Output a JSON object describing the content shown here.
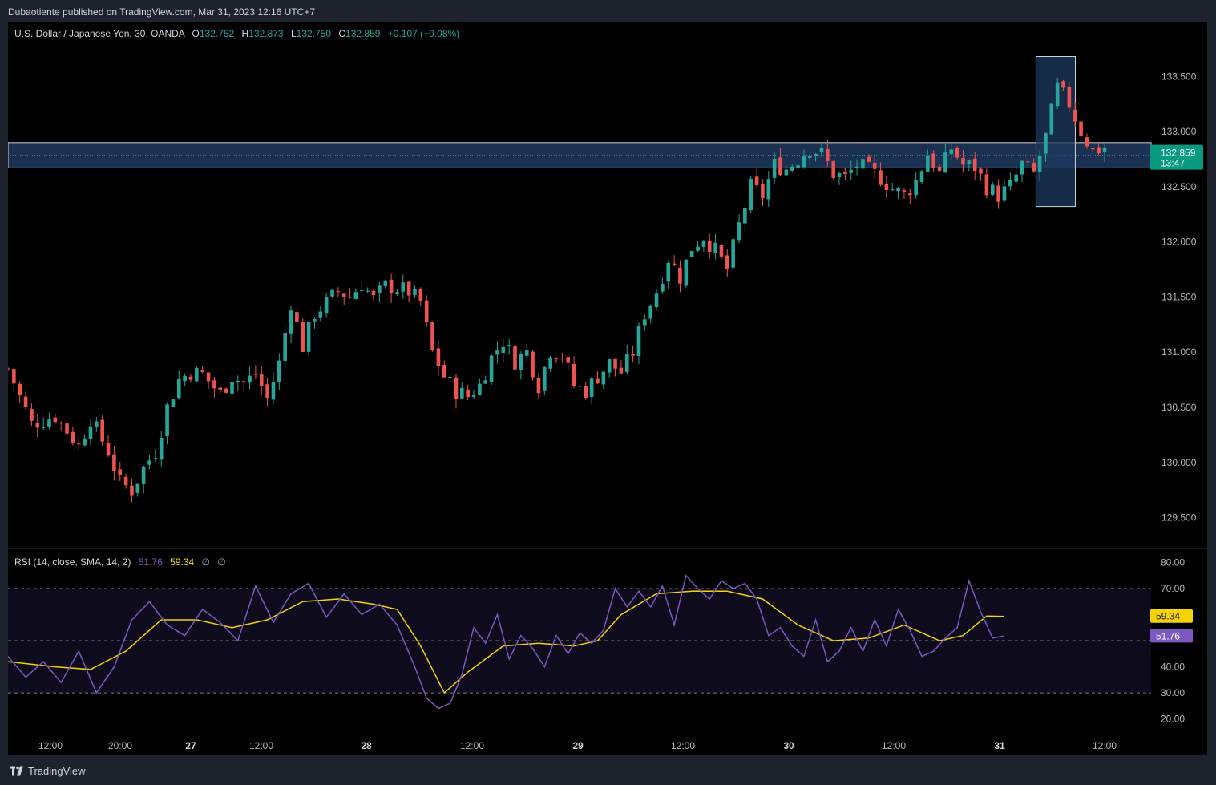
{
  "header": {
    "publisher_text": "Dubaotiente published on TradingView.com, Mar 31, 2023 12:16 UTC+7"
  },
  "symbol": {
    "name": "U.S. Dollar / Japanese Yen, 30, OANDA",
    "open_label": "O",
    "open": "132.752",
    "high_label": "H",
    "high": "132.873",
    "low_label": "L",
    "low": "132.750",
    "close_label": "C",
    "close": "132.859",
    "change": "+0.107 (+0.08%)"
  },
  "price_badge": {
    "price": "132.859",
    "countdown": "13:47"
  },
  "rsi_legend": {
    "name": "RSI (14, close, SMA, 14, 2)",
    "rsi_value": "51.76",
    "sma_value": "59.34",
    "na1": "∅",
    "na2": "∅"
  },
  "footer": {
    "brand": "TradingView"
  },
  "colors": {
    "up": "#26a69a",
    "down": "#ef5350",
    "rsi": "#7e57c2",
    "rsi_ma": "#f5d300",
    "zone_fill": "#1e3a5f",
    "background": "#000000"
  },
  "chart_data": [
    {
      "type": "candlestick",
      "title": "U.S. Dollar / Japanese Yen, 30, OANDA",
      "y_ticks": [
        "133.500",
        "133.000",
        "132.500",
        "132.000",
        "131.500",
        "131.000",
        "130.500",
        "130.000",
        "129.500"
      ],
      "ylim": [
        129.25,
        133.72
      ],
      "x_ticks": [
        "12:00",
        "20:00",
        "27",
        "12:00",
        "28",
        "12:00",
        "29",
        "12:00",
        "30",
        "12:00",
        "31",
        "12:00"
      ],
      "annotations": {
        "resistance_zone": [
          132.67,
          132.9
        ],
        "highlight_box_price_range": [
          132.32,
          133.68
        ]
      },
      "close_path": [
        [
          0,
          130.85
        ],
        [
          4,
          130.35
        ],
        [
          8,
          130.42
        ],
        [
          12,
          130.15
        ],
        [
          14,
          130.4
        ],
        [
          17,
          130.1
        ],
        [
          19,
          129.82
        ],
        [
          21,
          129.75
        ],
        [
          23,
          129.95
        ],
        [
          25,
          130.1
        ],
        [
          27,
          130.5
        ],
        [
          29,
          130.75
        ],
        [
          31,
          130.82
        ],
        [
          33,
          130.8
        ],
        [
          36,
          130.62
        ],
        [
          38,
          130.78
        ],
        [
          40,
          130.72
        ],
        [
          42,
          130.8
        ],
        [
          44,
          130.58
        ],
        [
          46,
          130.9
        ],
        [
          48,
          131.45
        ],
        [
          50,
          131.05
        ],
        [
          52,
          131.35
        ],
        [
          54,
          131.45
        ],
        [
          56,
          131.55
        ],
        [
          58,
          131.5
        ],
        [
          60,
          131.62
        ],
        [
          62,
          131.48
        ],
        [
          64,
          131.6
        ],
        [
          66,
          131.58
        ],
        [
          68,
          131.55
        ],
        [
          70,
          131.45
        ],
        [
          72,
          131.0
        ],
        [
          74,
          130.78
        ],
        [
          76,
          130.65
        ],
        [
          78,
          130.6
        ],
        [
          80,
          130.7
        ],
        [
          82,
          130.95
        ],
        [
          84,
          131.1
        ],
        [
          86,
          130.92
        ],
        [
          88,
          131.0
        ],
        [
          90,
          130.7
        ],
        [
          92,
          131.02
        ],
        [
          94,
          130.98
        ],
        [
          96,
          130.7
        ],
        [
          98,
          130.65
        ],
        [
          100,
          130.78
        ],
        [
          102,
          130.9
        ],
        [
          104,
          130.82
        ],
        [
          106,
          131.0
        ],
        [
          108,
          131.35
        ],
        [
          110,
          131.55
        ],
        [
          112,
          131.85
        ],
        [
          114,
          131.68
        ],
        [
          116,
          131.95
        ],
        [
          118,
          132.05
        ],
        [
          120,
          131.92
        ],
        [
          122,
          131.75
        ],
        [
          124,
          132.15
        ],
        [
          126,
          132.5
        ],
        [
          128,
          132.42
        ],
        [
          130,
          132.7
        ],
        [
          132,
          132.66
        ],
        [
          134,
          132.75
        ],
        [
          136,
          132.85
        ],
        [
          138,
          132.8
        ],
        [
          140,
          132.62
        ],
        [
          142,
          132.58
        ],
        [
          144,
          132.7
        ],
        [
          146,
          132.65
        ],
        [
          148,
          132.58
        ],
        [
          150,
          132.48
        ],
        [
          152,
          132.42
        ],
        [
          154,
          132.55
        ],
        [
          156,
          132.8
        ],
        [
          158,
          132.62
        ],
        [
          160,
          132.85
        ],
        [
          162,
          132.7
        ],
        [
          164,
          132.68
        ],
        [
          166,
          132.5
        ],
        [
          168,
          132.42
        ],
        [
          170,
          132.5
        ],
        [
          172,
          132.7
        ],
        [
          174,
          132.62
        ],
        [
          176,
          132.95
        ],
        [
          178,
          133.4
        ],
        [
          180,
          133.25
        ],
        [
          182,
          133.0
        ],
        [
          184,
          132.82
        ],
        [
          186,
          132.86
        ]
      ]
    },
    {
      "type": "line",
      "title": "RSI (14, close, SMA, 14, 2)",
      "y_ticks": [
        "80.00",
        "70.00",
        "40.00",
        "30.00",
        "20.00"
      ],
      "ylim": [
        16.5,
        82.0
      ],
      "bands": [
        30,
        50,
        70
      ],
      "series": [
        {
          "name": "RSI",
          "points": [
            [
              0,
              44
            ],
            [
              3,
              36
            ],
            [
              6,
              42
            ],
            [
              9,
              34
            ],
            [
              12,
              46
            ],
            [
              15,
              30
            ],
            [
              18,
              40
            ],
            [
              21,
              58
            ],
            [
              24,
              65
            ],
            [
              27,
              56
            ],
            [
              30,
              52
            ],
            [
              33,
              62
            ],
            [
              36,
              57
            ],
            [
              39,
              50
            ],
            [
              42,
              71
            ],
            [
              45,
              57
            ],
            [
              48,
              68
            ],
            [
              51,
              72
            ],
            [
              54,
              59
            ],
            [
              57,
              68
            ],
            [
              60,
              60
            ],
            [
              63,
              64
            ],
            [
              66,
              56
            ],
            [
              69,
              40
            ],
            [
              71,
              28
            ],
            [
              73,
              24
            ],
            [
              75,
              26
            ],
            [
              77,
              37
            ],
            [
              79,
              55
            ],
            [
              81,
              49
            ],
            [
              83,
              60
            ],
            [
              85,
              43
            ],
            [
              87,
              52
            ],
            [
              89,
              47
            ],
            [
              91,
              40
            ],
            [
              93,
              52
            ],
            [
              95,
              45
            ],
            [
              97,
              53
            ],
            [
              99,
              49
            ],
            [
              101,
              54
            ],
            [
              103,
              70
            ],
            [
              105,
              63
            ],
            [
              107,
              69
            ],
            [
              109,
              63
            ],
            [
              111,
              71
            ],
            [
              113,
              56
            ],
            [
              115,
              75
            ],
            [
              117,
              70
            ],
            [
              119,
              66
            ],
            [
              121,
              73
            ],
            [
              123,
              70
            ],
            [
              125,
              72
            ],
            [
              127,
              66
            ],
            [
              129,
              52
            ],
            [
              131,
              55
            ],
            [
              133,
              48
            ],
            [
              135,
              44
            ],
            [
              137,
              58
            ],
            [
              139,
              42
            ],
            [
              141,
              46
            ],
            [
              143,
              55
            ],
            [
              145,
              46
            ],
            [
              147,
              58
            ],
            [
              149,
              48
            ],
            [
              151,
              62
            ],
            [
              153,
              54
            ],
            [
              155,
              44
            ],
            [
              157,
              46
            ],
            [
              159,
              51
            ],
            [
              161,
              55
            ],
            [
              163,
              73
            ],
            [
              165,
              61
            ],
            [
              167,
              51
            ],
            [
              169,
              51.76
            ]
          ]
        },
        {
          "name": "SMA",
          "points": [
            [
              0,
              42
            ],
            [
              8,
              40
            ],
            [
              14,
              39
            ],
            [
              20,
              46
            ],
            [
              26,
              58
            ],
            [
              32,
              58
            ],
            [
              38,
              55
            ],
            [
              44,
              58
            ],
            [
              50,
              65
            ],
            [
              56,
              66
            ],
            [
              62,
              64
            ],
            [
              66,
              62
            ],
            [
              70,
              48
            ],
            [
              74,
              30
            ],
            [
              78,
              38
            ],
            [
              84,
              48
            ],
            [
              90,
              49
            ],
            [
              96,
              48
            ],
            [
              100,
              50
            ],
            [
              104,
              60
            ],
            [
              110,
              68
            ],
            [
              116,
              69
            ],
            [
              122,
              69
            ],
            [
              128,
              66
            ],
            [
              134,
              56
            ],
            [
              140,
              50
            ],
            [
              146,
              51
            ],
            [
              152,
              56
            ],
            [
              158,
              50
            ],
            [
              162,
              52
            ],
            [
              166,
              59.5
            ],
            [
              169,
              59.34
            ]
          ]
        }
      ]
    }
  ]
}
